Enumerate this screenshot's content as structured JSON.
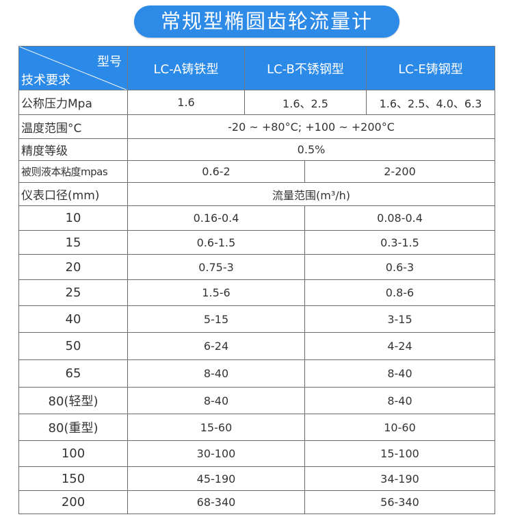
{
  "title": "常规型椭圆齿轮流量计",
  "header": {
    "corner_top": "型号",
    "corner_bottom": "技术要求",
    "models": [
      "LC-A铸铁型",
      "LC-B不锈钢型",
      "LC-E铸钢型"
    ]
  },
  "pressure": {
    "label": "公称压力Mpa",
    "values": [
      "1.6",
      "1.6、2.5",
      "1.6、2.5、4.0、6.3"
    ]
  },
  "temperature": {
    "label": "温度范围°C",
    "value": "-20 ~ +80°C;  +100 ~ +200°C"
  },
  "accuracy": {
    "label": "精度等级",
    "value": "0.5%"
  },
  "viscosity": {
    "label": "被则液本粘度mpas",
    "values": [
      "0.6-2",
      "2-200"
    ]
  },
  "flow_header": {
    "label": "仪表口径(mm)",
    "value": "流量范围(m³/h)"
  },
  "rows": [
    {
      "size": "10",
      "a": "0.16-0.4",
      "b": "0.08-0.4"
    },
    {
      "size": "15",
      "a": "0.6-1.5",
      "b": "0.3-1.5"
    },
    {
      "size": "20",
      "a": "0.75-3",
      "b": "0.6-3"
    },
    {
      "size": "25",
      "a": "1.5-6",
      "b": "0.8-6"
    },
    {
      "size": "40",
      "a": "5-15",
      "b": "3-15"
    },
    {
      "size": "50",
      "a": "6-24",
      "b": "4-24"
    },
    {
      "size": "65",
      "a": "8-40",
      "b": "8-40"
    },
    {
      "size": "80(轻型)",
      "a": "8-40",
      "b": "8-40"
    },
    {
      "size": "80(重型)",
      "a": "15-60",
      "b": "10-60"
    },
    {
      "size": "100",
      "a": "30-100",
      "b": "15-100"
    },
    {
      "size": "150",
      "a": "45-190",
      "b": "34-190"
    },
    {
      "size": "200",
      "a": "68-340",
      "b": "56-340"
    }
  ]
}
